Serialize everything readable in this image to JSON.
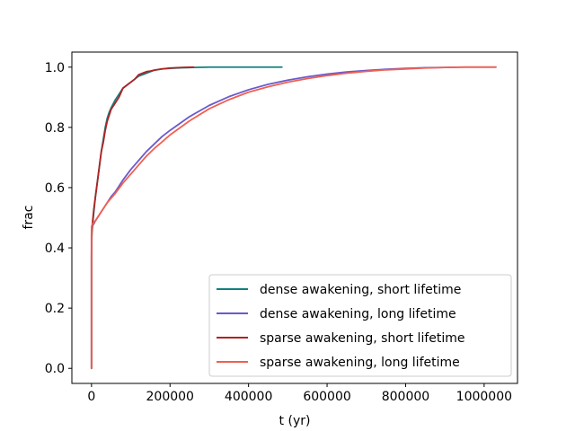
{
  "chart_data": {
    "type": "line",
    "xlabel": "t (yr)",
    "ylabel": "frac",
    "xlim": [
      -50000,
      1085000
    ],
    "ylim": [
      -0.05,
      1.05
    ],
    "x_ticks": [
      0,
      200000,
      400000,
      600000,
      800000,
      1000000
    ],
    "x_tick_labels": [
      "0",
      "200000",
      "400000",
      "600000",
      "800000",
      "1000000"
    ],
    "y_ticks": [
      0.0,
      0.2,
      0.4,
      0.6,
      0.8,
      1.0
    ],
    "y_tick_labels": [
      "0.0",
      "0.2",
      "0.4",
      "0.6",
      "0.8",
      "1.0"
    ],
    "grid": false,
    "legend_position": "lower-right",
    "series": [
      {
        "name": "dense awakening, short lifetime",
        "color": "#108080",
        "x": [
          0,
          0,
          200,
          1000,
          3000,
          6000,
          10000,
          15000,
          20000,
          25000,
          30000,
          35000,
          40000,
          45000,
          50000,
          60000,
          70000,
          80000,
          90000,
          100000,
          110000,
          120000,
          130000,
          140000,
          150000,
          160000,
          180000,
          200000,
          230000,
          260000,
          300000,
          350000,
          400000,
          450000,
          485000
        ],
        "y": [
          0.0,
          0.36,
          0.41,
          0.45,
          0.48,
          0.52,
          0.57,
          0.62,
          0.67,
          0.72,
          0.76,
          0.8,
          0.83,
          0.85,
          0.865,
          0.89,
          0.91,
          0.93,
          0.94,
          0.95,
          0.96,
          0.97,
          0.975,
          0.98,
          0.985,
          0.99,
          0.994,
          0.996,
          0.998,
          0.999,
          1.0,
          1.0,
          1.0,
          1.0,
          1.0
        ]
      },
      {
        "name": "dense awakening, long lifetime",
        "color": "#6a5acd",
        "x": [
          0,
          0,
          200,
          1000,
          3000,
          6000,
          10000,
          20000,
          30000,
          40000,
          50000,
          60000,
          80000,
          100000,
          120000,
          140000,
          160000,
          180000,
          200000,
          250000,
          300000,
          350000,
          400000,
          450000,
          500000,
          550000,
          600000,
          650000,
          700000,
          750000,
          800000,
          850000,
          900000,
          950000,
          1000000,
          1030000
        ],
        "y": [
          0.0,
          0.44,
          0.465,
          0.47,
          0.475,
          0.48,
          0.49,
          0.51,
          0.53,
          0.55,
          0.57,
          0.585,
          0.625,
          0.66,
          0.69,
          0.72,
          0.745,
          0.77,
          0.79,
          0.836,
          0.873,
          0.902,
          0.925,
          0.943,
          0.957,
          0.968,
          0.977,
          0.984,
          0.989,
          0.993,
          0.996,
          0.998,
          0.999,
          1.0,
          1.0,
          1.0
        ]
      },
      {
        "name": "sparse awakening, short lifetime",
        "color": "#b22222",
        "x": [
          0,
          0,
          200,
          1000,
          3000,
          6000,
          10000,
          15000,
          20000,
          25000,
          30000,
          35000,
          40000,
          45000,
          50000,
          60000,
          70000,
          80000,
          90000,
          100000,
          110000,
          120000,
          130000,
          140000,
          150000,
          160000,
          180000,
          200000,
          230000,
          260000
        ],
        "y": [
          0.0,
          0.37,
          0.42,
          0.46,
          0.49,
          0.53,
          0.57,
          0.62,
          0.67,
          0.72,
          0.75,
          0.79,
          0.82,
          0.84,
          0.86,
          0.88,
          0.9,
          0.93,
          0.94,
          0.95,
          0.96,
          0.975,
          0.98,
          0.985,
          0.987,
          0.99,
          0.994,
          0.997,
          0.999,
          1.0
        ]
      },
      {
        "name": "sparse awakening, long lifetime",
        "color": "#f06050",
        "x": [
          0,
          0,
          200,
          1000,
          3000,
          6000,
          10000,
          20000,
          30000,
          40000,
          50000,
          60000,
          80000,
          100000,
          120000,
          140000,
          160000,
          180000,
          200000,
          250000,
          300000,
          350000,
          400000,
          450000,
          500000,
          550000,
          600000,
          650000,
          700000,
          750000,
          800000,
          850000,
          900000,
          950000,
          1000000,
          1030000
        ],
        "y": [
          0.0,
          0.45,
          0.47,
          0.475,
          0.48,
          0.485,
          0.49,
          0.51,
          0.53,
          0.55,
          0.565,
          0.58,
          0.615,
          0.645,
          0.675,
          0.705,
          0.73,
          0.752,
          0.775,
          0.822,
          0.862,
          0.892,
          0.917,
          0.935,
          0.95,
          0.962,
          0.972,
          0.98,
          0.986,
          0.991,
          0.994,
          0.997,
          0.999,
          1.0,
          1.0,
          1.0
        ]
      }
    ]
  }
}
